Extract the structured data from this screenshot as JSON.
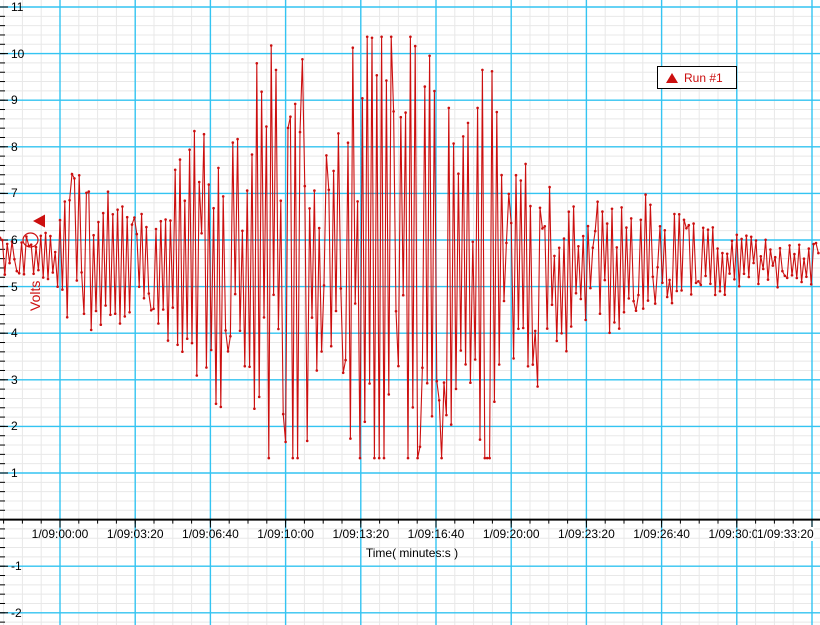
{
  "chart_data": {
    "type": "line",
    "title": "",
    "xlabel": "Time( minutes:s )",
    "ylabel": "Volts",
    "legend_position": "top-right",
    "series": [
      {
        "name": "Run #1",
        "color": "#cc0f0f",
        "marker": "triangle-up",
        "point_dot_radius_px": 1.3
      }
    ],
    "x_tick_labels": [
      "1/09:00:00",
      "1/09:03:20",
      "1/09:06:40",
      "1/09:10:00",
      "1/09:13:20",
      "1/09:16:40",
      "1/09:20:00",
      "1/09:23:20",
      "1/09:26:40",
      "1/09:30:00",
      "1/09:33:20"
    ],
    "x_tick_interval_seconds": 200,
    "y_tick_labels": [
      11,
      10,
      9,
      8,
      7,
      6,
      5,
      4,
      3,
      2,
      1,
      -1,
      -2
    ],
    "ylim": [
      -2.25,
      11.12
    ],
    "grid": {
      "major_color": "#33c4f2",
      "minor_color": "#e8e8e8",
      "x_minor_per_major": 4,
      "y_minor_per_major": 5,
      "grid_on": true
    },
    "baseline_volts": 5.55,
    "clip_high_volts": 10.36,
    "clip_low_volts": 1.32,
    "envelope_amp_volts": [
      [
        0,
        0.45
      ],
      [
        40,
        0.5
      ],
      [
        55,
        0.6
      ],
      [
        62,
        1.1
      ],
      [
        75,
        2.45
      ],
      [
        85,
        1.6
      ],
      [
        105,
        1.9
      ],
      [
        120,
        1.4
      ],
      [
        135,
        1.0
      ],
      [
        152,
        1.05
      ],
      [
        165,
        1.5
      ],
      [
        178,
        2.3
      ],
      [
        190,
        3.4
      ],
      [
        202,
        3.0
      ],
      [
        212,
        2.7
      ],
      [
        222,
        3.3
      ],
      [
        232,
        2.5
      ],
      [
        243,
        3.0
      ],
      [
        252,
        4.6
      ],
      [
        262,
        5.2
      ],
      [
        278,
        5.2
      ],
      [
        288,
        3.9
      ],
      [
        296,
        5.2
      ],
      [
        312,
        5.2
      ],
      [
        322,
        3.3
      ],
      [
        332,
        2.4
      ],
      [
        342,
        3.1
      ],
      [
        352,
        5.2
      ],
      [
        372,
        5.2
      ],
      [
        392,
        5.2
      ],
      [
        412,
        5.2
      ],
      [
        426,
        4.1
      ],
      [
        438,
        5.2
      ],
      [
        452,
        3.5
      ],
      [
        462,
        2.6
      ],
      [
        472,
        3.3
      ],
      [
        482,
        5.2
      ],
      [
        492,
        4.3
      ],
      [
        502,
        2.8
      ],
      [
        512,
        2.1
      ],
      [
        522,
        2.3
      ],
      [
        535,
        2.6
      ],
      [
        545,
        3.0
      ],
      [
        558,
        2.2
      ],
      [
        572,
        1.7
      ],
      [
        585,
        1.4
      ],
      [
        600,
        1.45
      ],
      [
        615,
        1.7
      ],
      [
        630,
        1.3
      ],
      [
        645,
        1.4
      ],
      [
        662,
        1.05
      ],
      [
        680,
        0.95
      ],
      [
        700,
        0.85
      ],
      [
        718,
        0.78
      ],
      [
        735,
        0.68
      ],
      [
        755,
        0.6
      ],
      [
        775,
        0.55
      ],
      [
        800,
        0.5
      ],
      [
        820,
        0.48
      ]
    ],
    "annotations": {
      "cursor_arrow": {
        "shape": "triangle-left",
        "color": "#cc0f0f",
        "value_volts": 6.4
      },
      "circled_point": {
        "shape": "ellipse-outline",
        "color": "#cc0f0f",
        "value_volts": 6.0
      }
    }
  },
  "legend": {
    "label": "Run #1"
  },
  "axis_colors": {
    "axis_line": "#000000",
    "tick": "#000000",
    "label_text": "#000000"
  }
}
